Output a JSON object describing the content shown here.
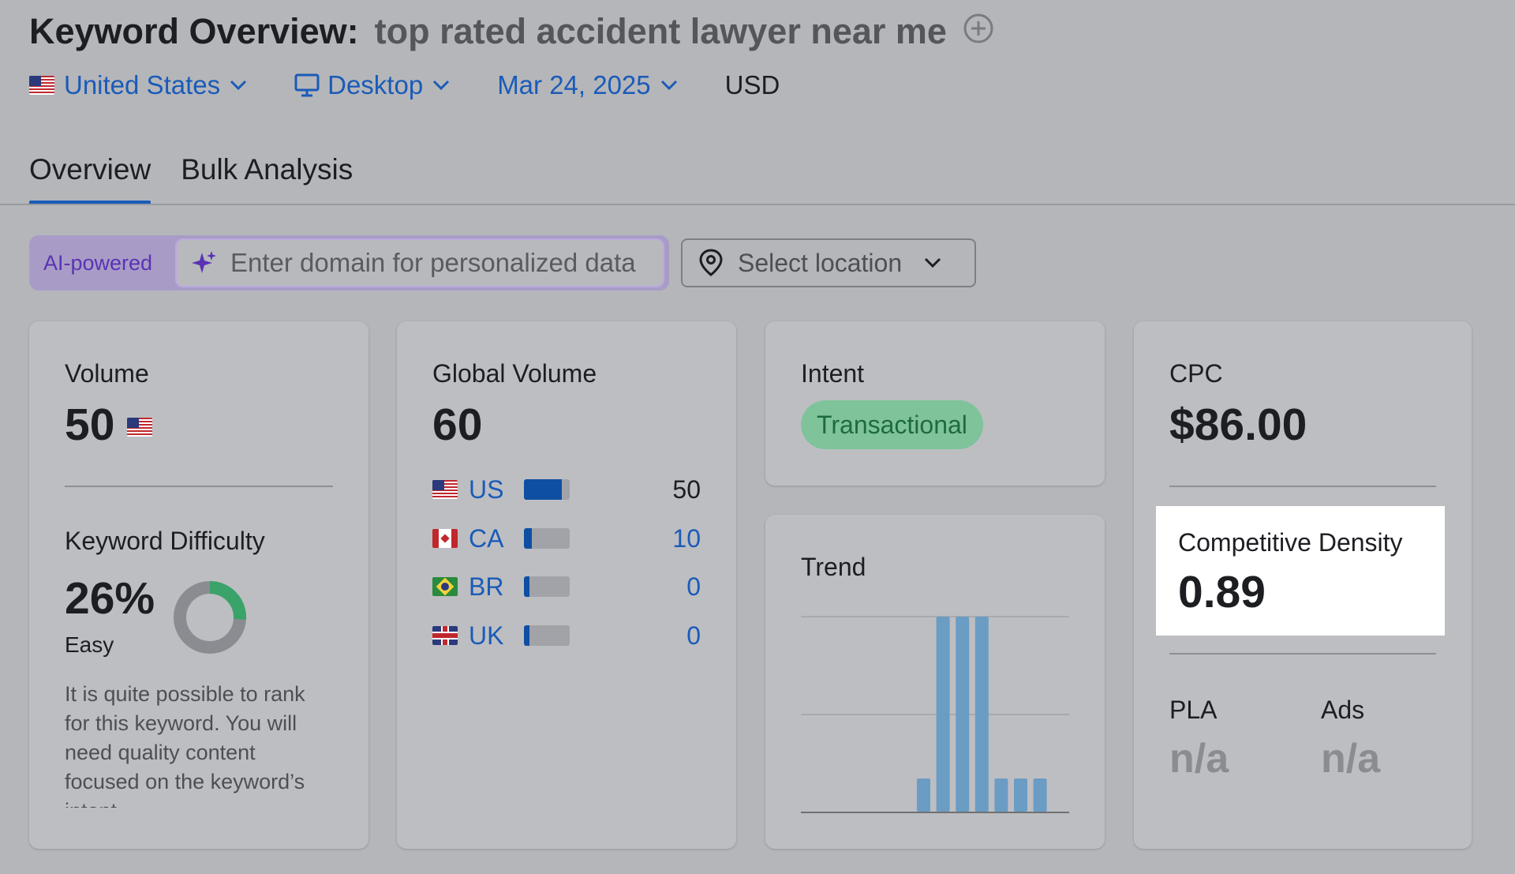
{
  "header": {
    "title_label": "Keyword Overview:",
    "keyword": "top rated accident lawyer near me",
    "add_icon": "plus-circle-icon"
  },
  "filters": {
    "country": "United States",
    "device": "Desktop",
    "date": "Mar 24, 2025",
    "currency": "USD"
  },
  "tabs": [
    {
      "label": "Overview",
      "active": true
    },
    {
      "label": "Bulk Analysis",
      "active": false
    }
  ],
  "domain_input": {
    "badge": "AI-powered",
    "placeholder": "Enter domain for personalized data",
    "location_placeholder": "Select location"
  },
  "volume_card": {
    "label": "Volume",
    "value": "50",
    "kd_label": "Keyword Difficulty",
    "kd_value": "26%",
    "kd_percent": 26,
    "kd_level": "Easy",
    "kd_description": "It is quite possible to rank for this keyword. You will need quality content focused on the keyword’s intent."
  },
  "global_volume_card": {
    "label": "Global Volume",
    "value": "60",
    "rows": [
      {
        "code": "US",
        "value": "50",
        "share": 0.83
      },
      {
        "code": "CA",
        "value": "10",
        "share": 0.17
      },
      {
        "code": "BR",
        "value": "0",
        "share": 0.0
      },
      {
        "code": "UK",
        "value": "0",
        "share": 0.0
      }
    ]
  },
  "intent_card": {
    "label": "Intent",
    "badge": "Transactional"
  },
  "trend_card": {
    "label": "Trend"
  },
  "cpc_card": {
    "label": "CPC",
    "value": "$86.00",
    "cd_label": "Competitive Density",
    "cd_value": "0.89",
    "pla_label": "PLA",
    "pla_value": "n/a",
    "ads_label": "Ads",
    "ads_value": "n/a"
  },
  "colors": {
    "accent_blue": "#1a5bb8",
    "intent_green": "#7fc39b",
    "kd_green": "#3aa36a",
    "trend_bar": "#6b9cc4",
    "ai_purple": "#5b32b5"
  },
  "chart_data": {
    "type": "bar",
    "values": [
      0,
      0,
      0,
      0,
      0,
      0,
      0.17,
      1,
      1,
      1,
      0.17,
      0.17,
      0.17
    ],
    "ylim": [
      0,
      1
    ],
    "grid": true
  }
}
